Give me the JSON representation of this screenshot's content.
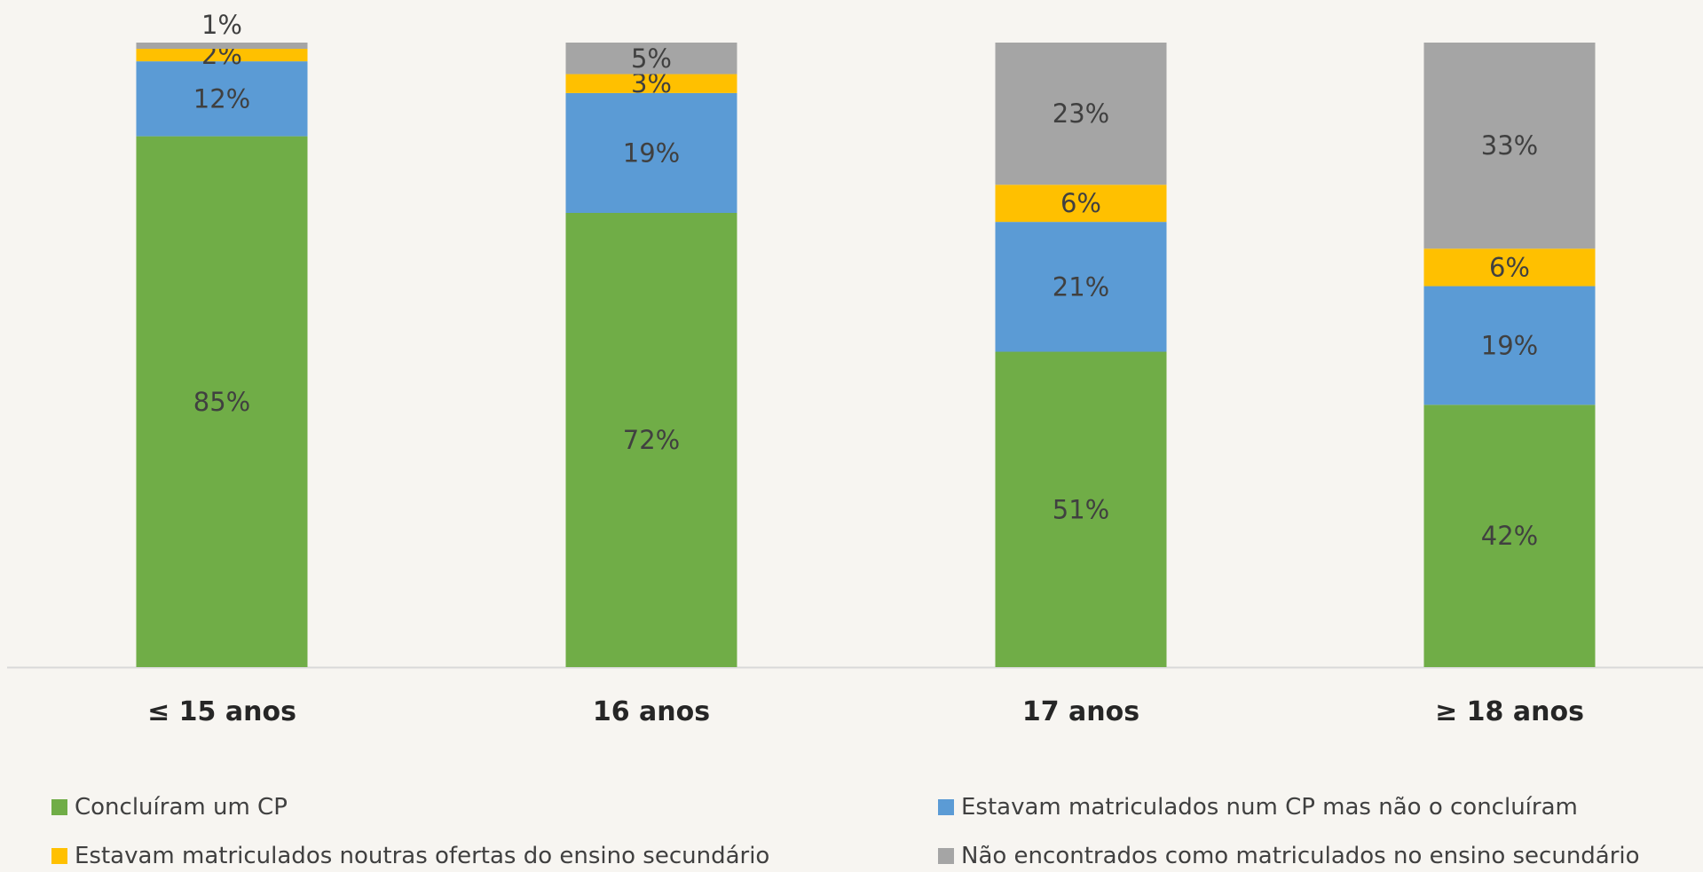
{
  "chart_data": {
    "type": "bar",
    "stacked": true,
    "percent_stacked": true,
    "categories": [
      "≤ 15 anos",
      "16 anos",
      "17 anos",
      "≥ 18 anos"
    ],
    "series": [
      {
        "name": "Concluíram um CP",
        "color": "#70ad47",
        "values": [
          85,
          72,
          51,
          42
        ]
      },
      {
        "name": "Estavam matriculados num CP mas não o concluíram",
        "color": "#5b9bd5",
        "values": [
          12,
          19,
          21,
          19
        ]
      },
      {
        "name": "Estavam matriculados noutras ofertas do ensino secundário",
        "color": "#ffc000",
        "values": [
          2,
          3,
          6,
          6
        ]
      },
      {
        "name": "Não encontrados como matriculados no ensino secundário",
        "color": "#a5a5a5",
        "values": [
          1,
          5,
          23,
          33
        ]
      }
    ],
    "labels": [
      [
        "85%",
        "12%",
        "2%",
        "1%"
      ],
      [
        "72%",
        "19%",
        "3%",
        "5%"
      ],
      [
        "51%",
        "21%",
        "6%",
        "23%"
      ],
      [
        "42%",
        "19%",
        "6%",
        "33%"
      ]
    ],
    "ylim": [
      0,
      100
    ],
    "grid": false,
    "legend_position": "bottom",
    "title": "",
    "xlabel": "",
    "ylabel": ""
  }
}
